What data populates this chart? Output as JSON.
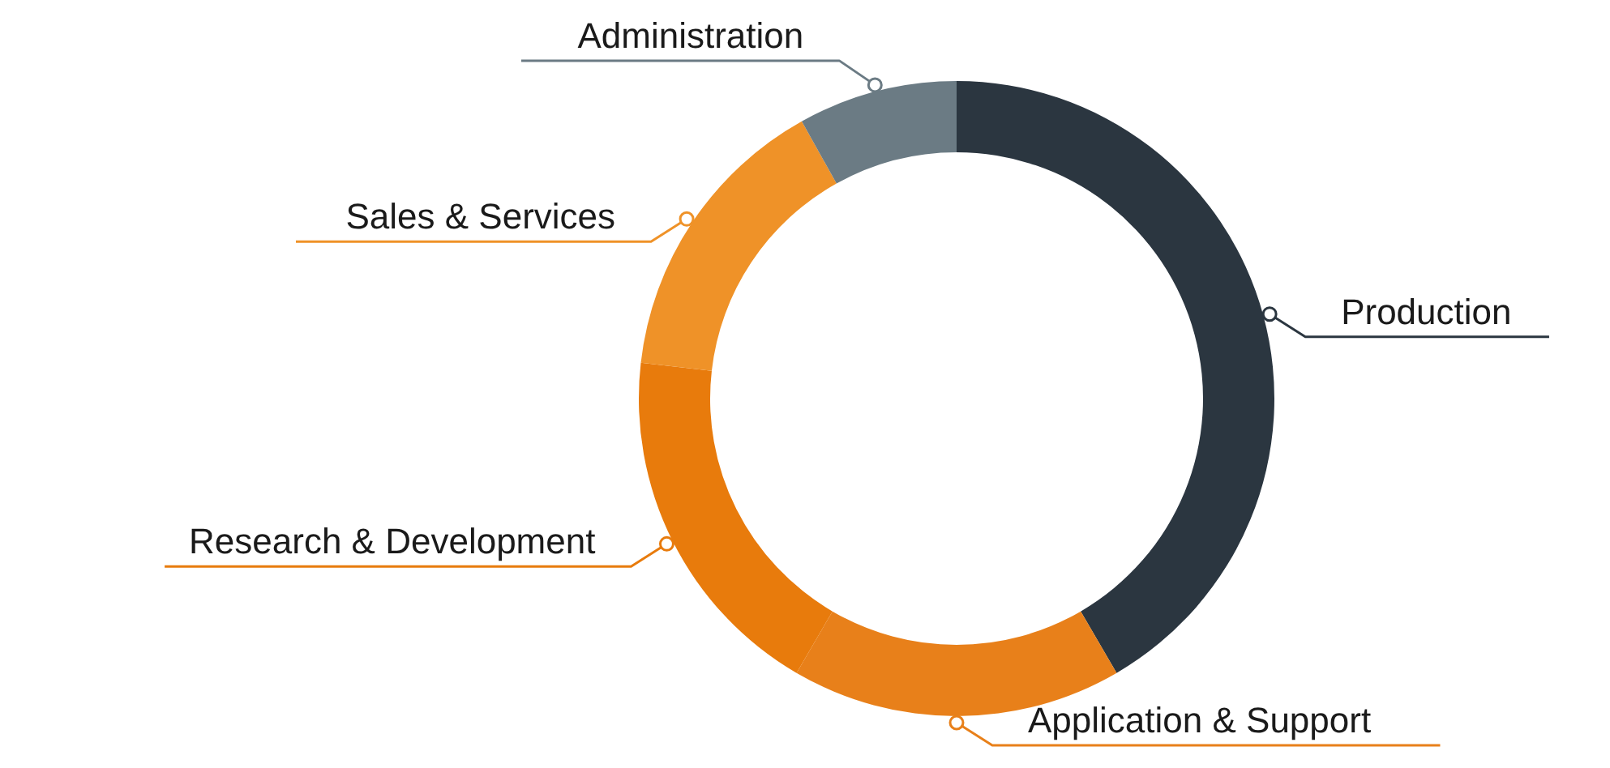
{
  "chart_data": {
    "type": "donut",
    "categories": [
      "Production",
      "Application & Support",
      "Research & Development",
      "Sales & Services",
      "Administration"
    ],
    "values": [
      41.6,
      16.8,
      18.4,
      15.1,
      8.1
    ],
    "colors": [
      "#2b3640",
      "#e8801a",
      "#e87b0c",
      "#ef9228",
      "#6b7b84"
    ],
    "legend": "right"
  }
}
